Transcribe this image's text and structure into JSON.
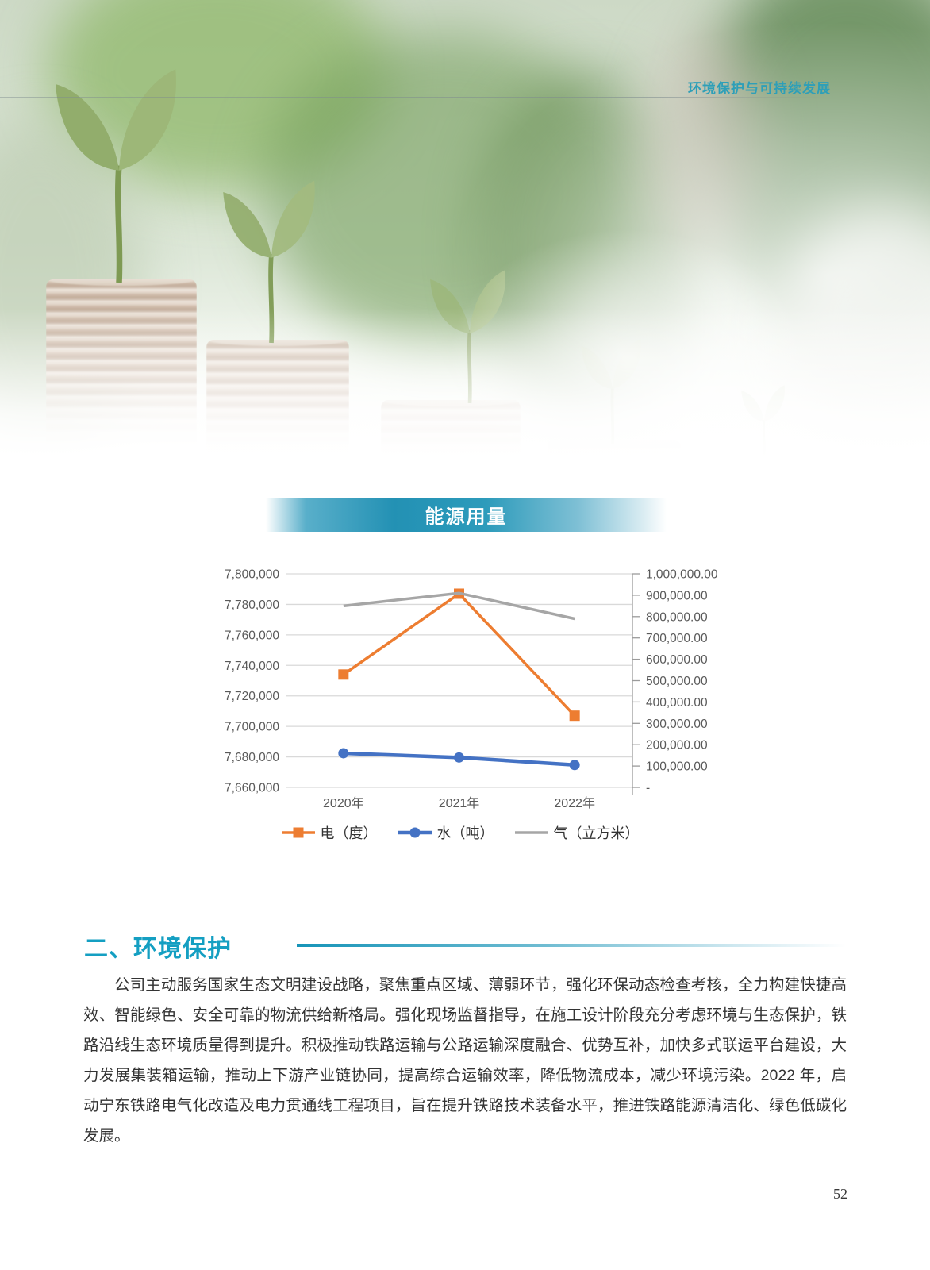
{
  "header": {
    "title": "环境保护与可持续发展"
  },
  "chart_banner": {
    "title": "能源用量"
  },
  "chart_data": {
    "type": "line",
    "title": "能源用量",
    "categories": [
      "2020年",
      "2021年",
      "2022年"
    ],
    "series": [
      {
        "name": "电（度）",
        "axis": "left",
        "color": "#ED7D31",
        "marker": "square",
        "line_width": 3.5,
        "marker_size": 13,
        "values": [
          7734000,
          7787000,
          7707000
        ]
      },
      {
        "name": "水（吨）",
        "axis": "right",
        "color": "#4472C4",
        "marker": "circle",
        "line_width": 4.5,
        "marker_size": 13,
        "values": [
          160000,
          140000,
          105000
        ]
      },
      {
        "name": "气（立方米）",
        "axis": "right",
        "color": "#A6A6A6",
        "marker": "none",
        "line_width": 3.5,
        "marker_size": 0,
        "values": [
          850000,
          910000,
          790000
        ]
      }
    ],
    "left_axis": {
      "min": 7660000,
      "max": 7800000,
      "step": 20000,
      "tick_labels": [
        "7,800,000",
        "7,780,000",
        "7,760,000",
        "7,740,000",
        "7,720,000",
        "7,700,000",
        "7,680,000",
        "7,660,000"
      ]
    },
    "right_axis": {
      "min": 0,
      "max": 1000000,
      "step": 100000,
      "tick_labels": [
        "1,000,000.00",
        "900,000.00",
        "800,000.00",
        "700,000.00",
        "600,000.00",
        "500,000.00",
        "400,000.00",
        "300,000.00",
        "200,000.00",
        "100,000.00",
        "-"
      ]
    },
    "grid": true,
    "grid_color": "#D9D9D9",
    "axis_line_color": "#9b9b9b",
    "axis_label_color": "#595959",
    "legend_position": "bottom"
  },
  "section": {
    "heading": "二、环境保护",
    "paragraph": "公司主动服务国家生态文明建设战略，聚焦重点区域、薄弱环节，强化环保动态检查考核，全力构建快捷高效、智能绿色、安全可靠的物流供给新格局。强化现场监督指导，在施工设计阶段充分考虑环境与生态保护，铁路沿线生态环境质量得到提升。积极推动铁路运输与公路运输深度融合、优势互补，加快多式联运平台建设，大力发展集装箱运输，推动上下游产业链协同，提高综合运输效率，降低物流成本，减少环境污染。2022 年，启动宁东铁路电气化改造及电力贯通线工程项目，旨在提升铁路技术装备水平，推进铁路能源清洁化、绿色低碳化发展。"
  },
  "page_number": "52"
}
